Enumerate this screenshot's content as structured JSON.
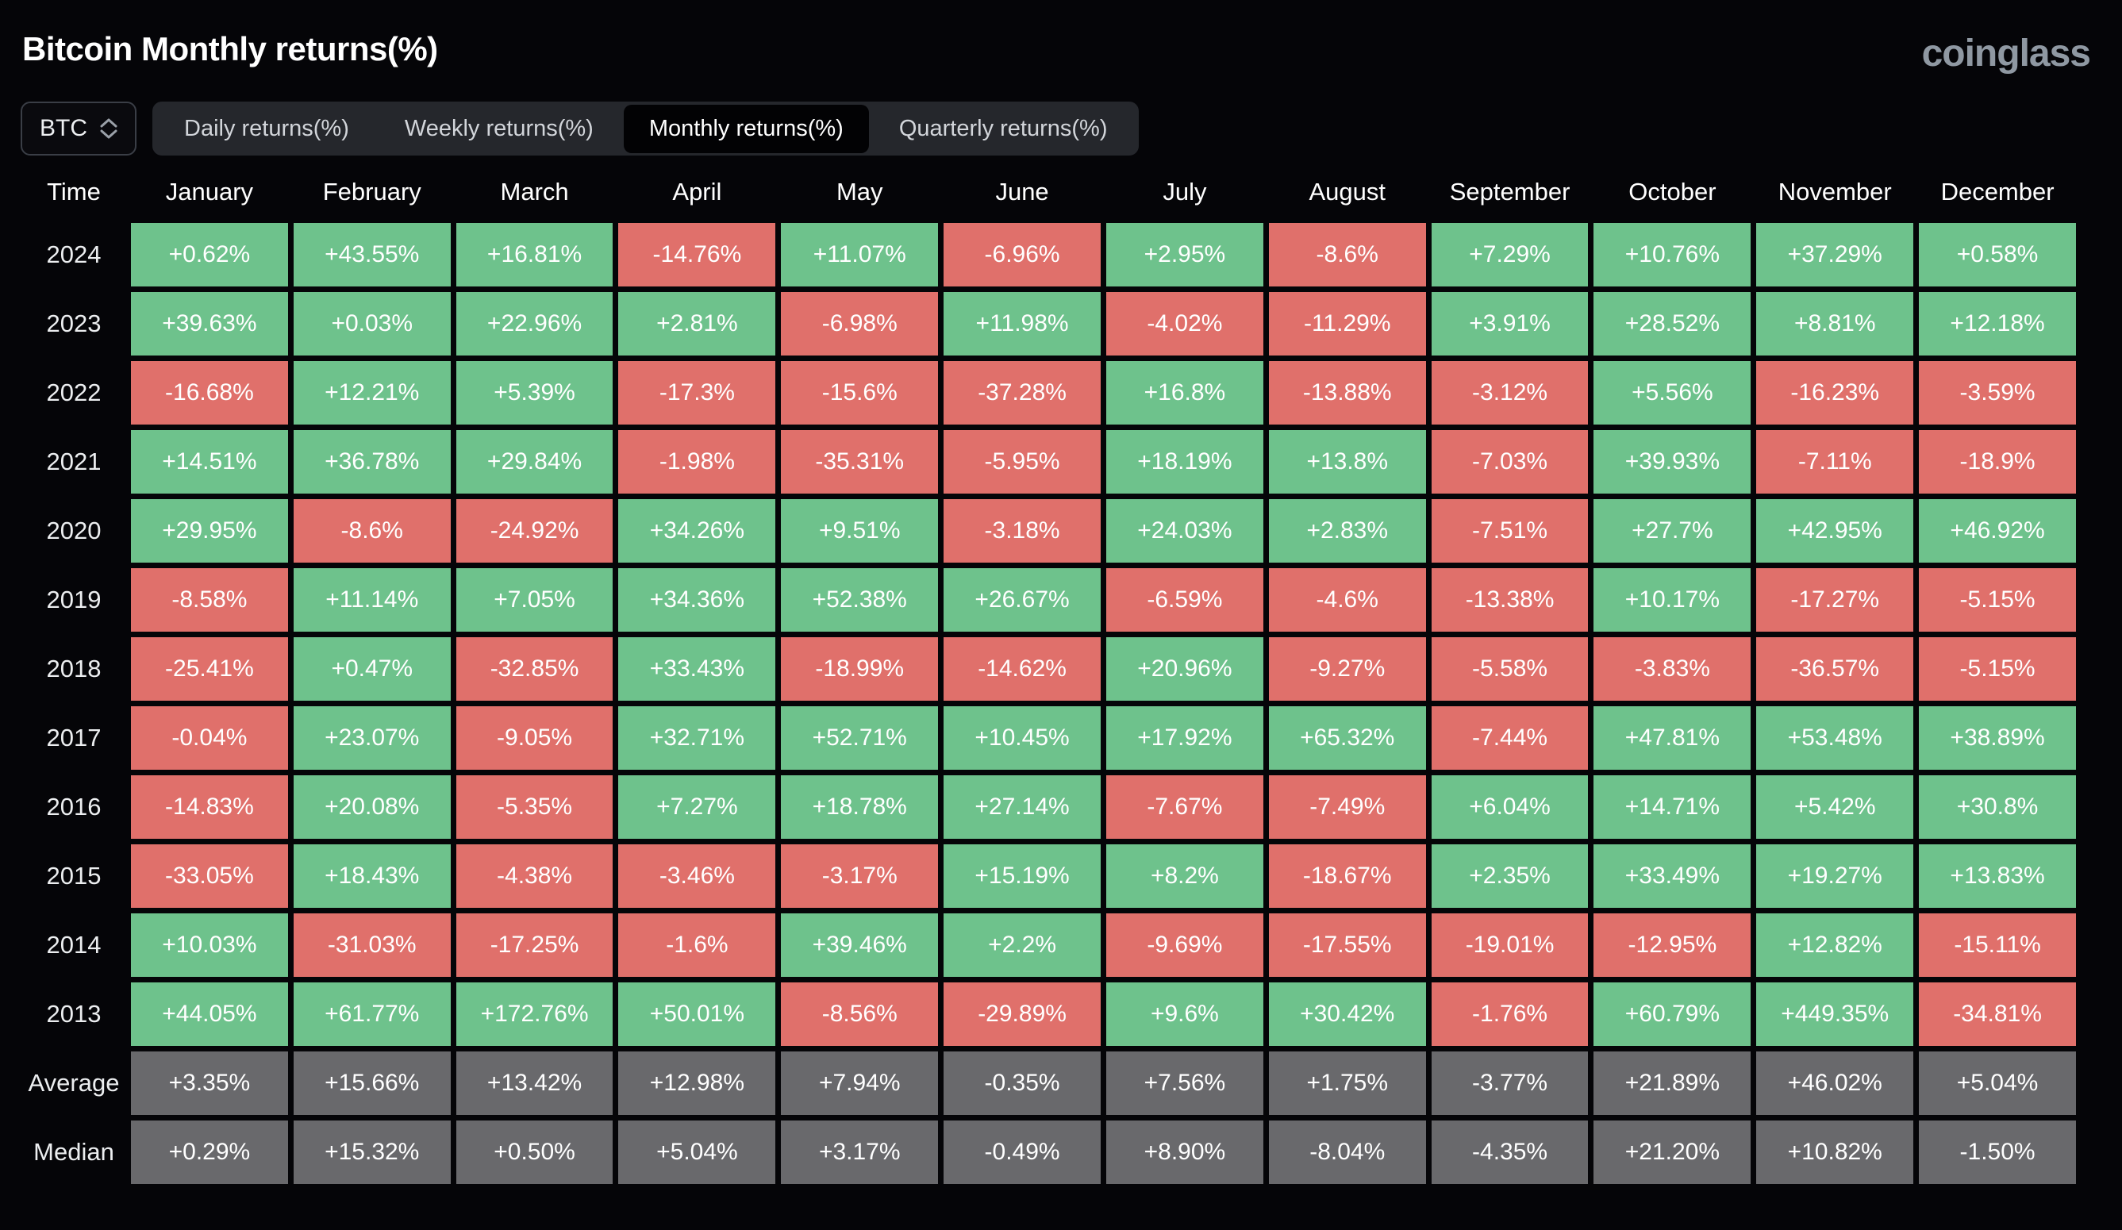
{
  "header": {
    "title": "Bitcoin Monthly returns(%)",
    "logo": "coinglass"
  },
  "controls": {
    "symbol": "BTC",
    "tabs": [
      {
        "label": "Daily returns(%)",
        "active": false
      },
      {
        "label": "Weekly returns(%)",
        "active": false
      },
      {
        "label": "Monthly returns(%)",
        "active": true
      },
      {
        "label": "Quarterly returns(%)",
        "active": false
      }
    ]
  },
  "colors": {
    "positive": "#6ec28c",
    "negative": "#e0706b",
    "summary": "#69696c",
    "background": "#050508"
  },
  "table": {
    "corner_label": "Time",
    "months": [
      "January",
      "February",
      "March",
      "April",
      "May",
      "June",
      "July",
      "August",
      "September",
      "October",
      "November",
      "December"
    ],
    "rows": [
      {
        "label": "2024",
        "type": "year",
        "values": [
          "+0.62%",
          "+43.55%",
          "+16.81%",
          "-14.76%",
          "+11.07%",
          "-6.96%",
          "+2.95%",
          "-8.6%",
          "+7.29%",
          "+10.76%",
          "+37.29%",
          "+0.58%"
        ]
      },
      {
        "label": "2023",
        "type": "year",
        "values": [
          "+39.63%",
          "+0.03%",
          "+22.96%",
          "+2.81%",
          "-6.98%",
          "+11.98%",
          "-4.02%",
          "-11.29%",
          "+3.91%",
          "+28.52%",
          "+8.81%",
          "+12.18%"
        ]
      },
      {
        "label": "2022",
        "type": "year",
        "values": [
          "-16.68%",
          "+12.21%",
          "+5.39%",
          "-17.3%",
          "-15.6%",
          "-37.28%",
          "+16.8%",
          "-13.88%",
          "-3.12%",
          "+5.56%",
          "-16.23%",
          "-3.59%"
        ]
      },
      {
        "label": "2021",
        "type": "year",
        "values": [
          "+14.51%",
          "+36.78%",
          "+29.84%",
          "-1.98%",
          "-35.31%",
          "-5.95%",
          "+18.19%",
          "+13.8%",
          "-7.03%",
          "+39.93%",
          "-7.11%",
          "-18.9%"
        ]
      },
      {
        "label": "2020",
        "type": "year",
        "values": [
          "+29.95%",
          "-8.6%",
          "-24.92%",
          "+34.26%",
          "+9.51%",
          "-3.18%",
          "+24.03%",
          "+2.83%",
          "-7.51%",
          "+27.7%",
          "+42.95%",
          "+46.92%"
        ]
      },
      {
        "label": "2019",
        "type": "year",
        "values": [
          "-8.58%",
          "+11.14%",
          "+7.05%",
          "+34.36%",
          "+52.38%",
          "+26.67%",
          "-6.59%",
          "-4.6%",
          "-13.38%",
          "+10.17%",
          "-17.27%",
          "-5.15%"
        ]
      },
      {
        "label": "2018",
        "type": "year",
        "values": [
          "-25.41%",
          "+0.47%",
          "-32.85%",
          "+33.43%",
          "-18.99%",
          "-14.62%",
          "+20.96%",
          "-9.27%",
          "-5.58%",
          "-3.83%",
          "-36.57%",
          "-5.15%"
        ]
      },
      {
        "label": "2017",
        "type": "year",
        "values": [
          "-0.04%",
          "+23.07%",
          "-9.05%",
          "+32.71%",
          "+52.71%",
          "+10.45%",
          "+17.92%",
          "+65.32%",
          "-7.44%",
          "+47.81%",
          "+53.48%",
          "+38.89%"
        ]
      },
      {
        "label": "2016",
        "type": "year",
        "values": [
          "-14.83%",
          "+20.08%",
          "-5.35%",
          "+7.27%",
          "+18.78%",
          "+27.14%",
          "-7.67%",
          "-7.49%",
          "+6.04%",
          "+14.71%",
          "+5.42%",
          "+30.8%"
        ]
      },
      {
        "label": "2015",
        "type": "year",
        "values": [
          "-33.05%",
          "+18.43%",
          "-4.38%",
          "-3.46%",
          "-3.17%",
          "+15.19%",
          "+8.2%",
          "-18.67%",
          "+2.35%",
          "+33.49%",
          "+19.27%",
          "+13.83%"
        ]
      },
      {
        "label": "2014",
        "type": "year",
        "values": [
          "+10.03%",
          "-31.03%",
          "-17.25%",
          "-1.6%",
          "+39.46%",
          "+2.2%",
          "-9.69%",
          "-17.55%",
          "-19.01%",
          "-12.95%",
          "+12.82%",
          "-15.11%"
        ]
      },
      {
        "label": "2013",
        "type": "year",
        "values": [
          "+44.05%",
          "+61.77%",
          "+172.76%",
          "+50.01%",
          "-8.56%",
          "-29.89%",
          "+9.6%",
          "+30.42%",
          "-1.76%",
          "+60.79%",
          "+449.35%",
          "-34.81%"
        ]
      },
      {
        "label": "Average",
        "type": "summary",
        "values": [
          "+3.35%",
          "+15.66%",
          "+13.42%",
          "+12.98%",
          "+7.94%",
          "-0.35%",
          "+7.56%",
          "+1.75%",
          "-3.77%",
          "+21.89%",
          "+46.02%",
          "+5.04%"
        ]
      },
      {
        "label": "Median",
        "type": "summary",
        "values": [
          "+0.29%",
          "+15.32%",
          "+0.50%",
          "+5.04%",
          "+3.17%",
          "-0.49%",
          "+8.90%",
          "-8.04%",
          "-4.35%",
          "+21.20%",
          "+10.82%",
          "-1.50%"
        ]
      }
    ]
  },
  "chart_data": {
    "type": "heatmap",
    "title": "Bitcoin Monthly returns(%)",
    "columns": [
      "January",
      "February",
      "March",
      "April",
      "May",
      "June",
      "July",
      "August",
      "September",
      "October",
      "November",
      "December"
    ],
    "row_labels": [
      "2024",
      "2023",
      "2022",
      "2021",
      "2020",
      "2019",
      "2018",
      "2017",
      "2016",
      "2015",
      "2014",
      "2013",
      "Average",
      "Median"
    ],
    "values": [
      [
        "+0.62%",
        "+43.55%",
        "+16.81%",
        "-14.76%",
        "+11.07%",
        "-6.96%",
        "+2.95%",
        "-8.6%",
        "+7.29%",
        "+10.76%",
        "+37.29%",
        "+0.58%"
      ],
      [
        "+39.63%",
        "+0.03%",
        "+22.96%",
        "+2.81%",
        "-6.98%",
        "+11.98%",
        "-4.02%",
        "-11.29%",
        "+3.91%",
        "+28.52%",
        "+8.81%",
        "+12.18%"
      ],
      [
        "-16.68%",
        "+12.21%",
        "+5.39%",
        "-17.3%",
        "-15.6%",
        "-37.28%",
        "+16.8%",
        "-13.88%",
        "-3.12%",
        "+5.56%",
        "-16.23%",
        "-3.59%"
      ],
      [
        "+14.51%",
        "+36.78%",
        "+29.84%",
        "-1.98%",
        "-35.31%",
        "-5.95%",
        "+18.19%",
        "+13.8%",
        "-7.03%",
        "+39.93%",
        "-7.11%",
        "-18.9%"
      ],
      [
        "+29.95%",
        "-8.6%",
        "-24.92%",
        "+34.26%",
        "+9.51%",
        "-3.18%",
        "+24.03%",
        "+2.83%",
        "-7.51%",
        "+27.7%",
        "+42.95%",
        "+46.92%"
      ],
      [
        "-8.58%",
        "+11.14%",
        "+7.05%",
        "+34.36%",
        "+52.38%",
        "+26.67%",
        "-6.59%",
        "-4.6%",
        "-13.38%",
        "+10.17%",
        "-17.27%",
        "-5.15%"
      ],
      [
        "-25.41%",
        "+0.47%",
        "-32.85%",
        "+33.43%",
        "-18.99%",
        "-14.62%",
        "+20.96%",
        "-9.27%",
        "-5.58%",
        "-3.83%",
        "-36.57%",
        "-5.15%"
      ],
      [
        "-0.04%",
        "+23.07%",
        "-9.05%",
        "+32.71%",
        "+52.71%",
        "+10.45%",
        "+17.92%",
        "+65.32%",
        "-7.44%",
        "+47.81%",
        "+53.48%",
        "+38.89%"
      ],
      [
        "-14.83%",
        "+20.08%",
        "-5.35%",
        "+7.27%",
        "+18.78%",
        "+27.14%",
        "-7.67%",
        "-7.49%",
        "+6.04%",
        "+14.71%",
        "+5.42%",
        "+30.8%"
      ],
      [
        "-33.05%",
        "+18.43%",
        "-4.38%",
        "-3.46%",
        "-3.17%",
        "+15.19%",
        "+8.2%",
        "-18.67%",
        "+2.35%",
        "+33.49%",
        "+19.27%",
        "+13.83%"
      ],
      [
        "+10.03%",
        "-31.03%",
        "-17.25%",
        "-1.6%",
        "+39.46%",
        "+2.2%",
        "-9.69%",
        "-17.55%",
        "-19.01%",
        "-12.95%",
        "+12.82%",
        "-15.11%"
      ],
      [
        "+44.05%",
        "+61.77%",
        "+172.76%",
        "+50.01%",
        "-8.56%",
        "-29.89%",
        "+9.6%",
        "+30.42%",
        "-1.76%",
        "+60.79%",
        "+449.35%",
        "-34.81%"
      ],
      [
        "+3.35%",
        "+15.66%",
        "+13.42%",
        "+12.98%",
        "+7.94%",
        "-0.35%",
        "+7.56%",
        "+1.75%",
        "-3.77%",
        "+21.89%",
        "+46.02%",
        "+5.04%"
      ],
      [
        "+0.29%",
        "+15.32%",
        "+0.50%",
        "+5.04%",
        "+3.17%",
        "-0.49%",
        "+8.90%",
        "-8.04%",
        "-4.35%",
        "+21.20%",
        "+10.82%",
        "-1.50%"
      ]
    ],
    "legend": "green = positive month, red = negative month, gray = summary rows",
    "color_positive": "#6ec28c",
    "color_negative": "#e0706b"
  }
}
